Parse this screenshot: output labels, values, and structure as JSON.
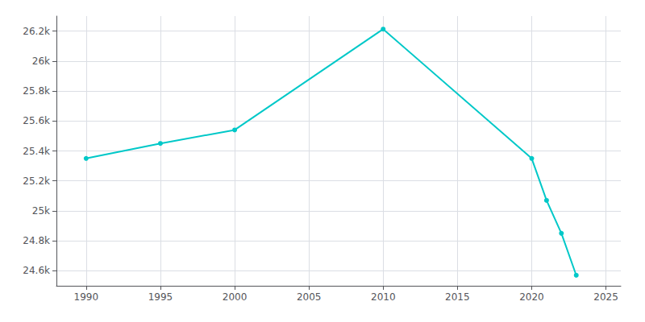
{
  "chart_data": {
    "type": "line",
    "x": [
      1990,
      1995,
      2000,
      2010,
      2020,
      2021,
      2022,
      2023
    ],
    "values": [
      25350,
      25450,
      25540,
      26213,
      25350,
      25070,
      24850,
      24570
    ],
    "color": "#00c8c8",
    "marker": "circle",
    "xlim": [
      1988,
      2026
    ],
    "xticks": [
      1990,
      1995,
      2000,
      2005,
      2010,
      2015,
      2020,
      2025
    ],
    "ylim": [
      24500,
      26300
    ],
    "yticks": [
      {
        "value": 24600,
        "label": "24.6k"
      },
      {
        "value": 24800,
        "label": "24.8k"
      },
      {
        "value": 25000,
        "label": "25k"
      },
      {
        "value": 25200,
        "label": "25.2k"
      },
      {
        "value": 25400,
        "label": "25.4k"
      },
      {
        "value": 25600,
        "label": "25.6k"
      },
      {
        "value": 25800,
        "label": "25.8k"
      },
      {
        "value": 26000,
        "label": "26k"
      },
      {
        "value": 26200,
        "label": "26.2k"
      }
    ],
    "grid": true
  }
}
